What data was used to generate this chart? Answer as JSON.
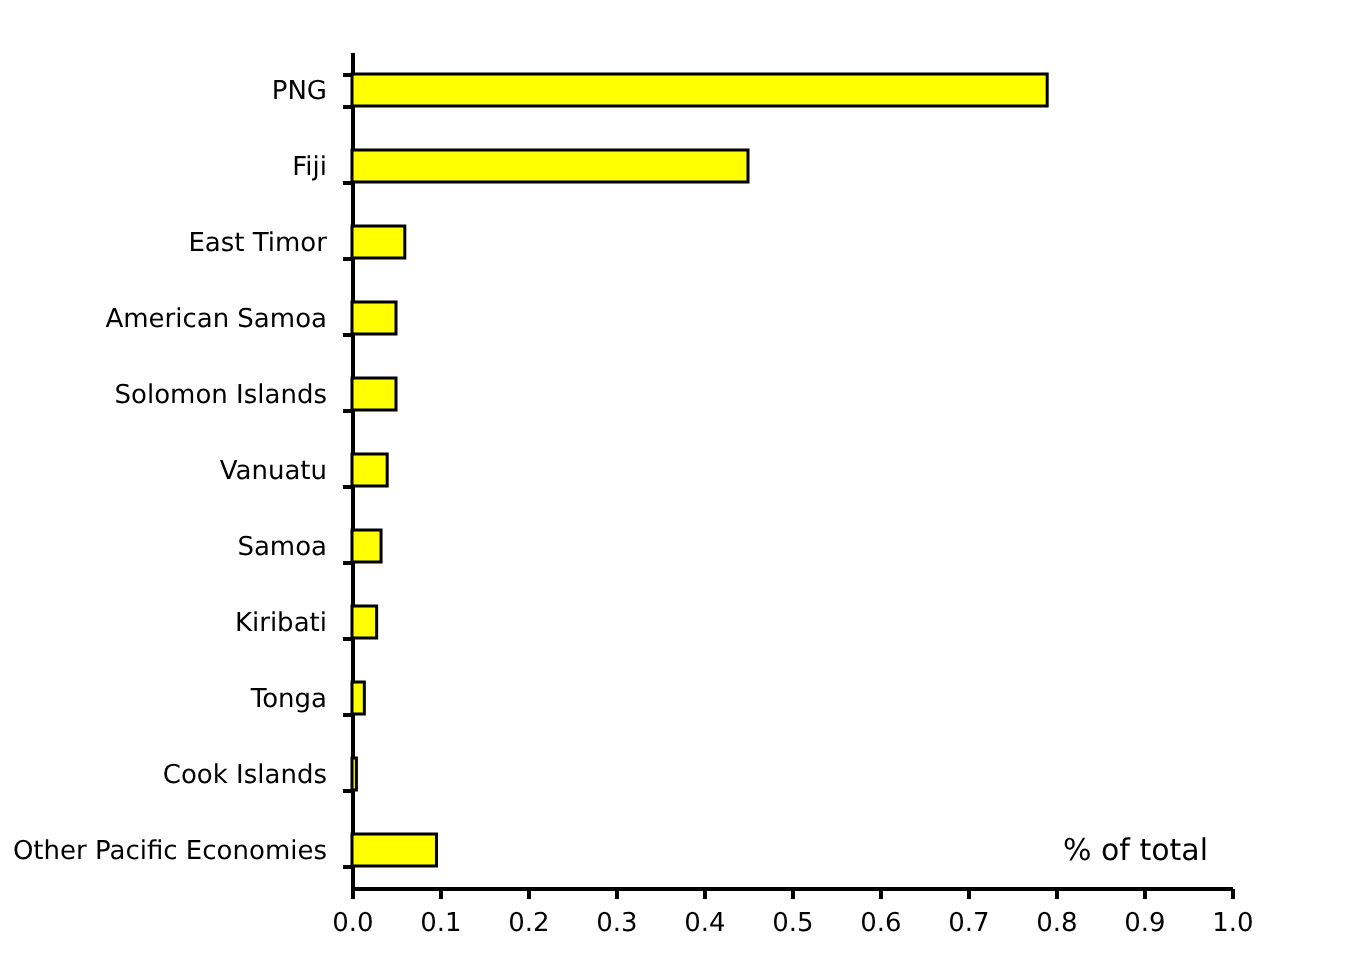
{
  "chart_data": {
    "type": "bar",
    "orientation": "horizontal",
    "xlabel": "% of total",
    "categories": [
      "PNG",
      "Fiji",
      "East Timor",
      "American Samoa",
      "Solomon Islands",
      "Vanuatu",
      "Samoa",
      "Kiribati",
      "Tonga",
      "Cook Islands",
      "Other Pacific Economies"
    ],
    "values": [
      0.79,
      0.45,
      0.06,
      0.05,
      0.05,
      0.04,
      0.033,
      0.028,
      0.014,
      0.005,
      0.096
    ],
    "color": "#ffff00",
    "xlim": [
      0.0,
      1.0
    ],
    "xticks": [
      {
        "value": 0,
        "label": "0.0"
      },
      0.1,
      0.2,
      0.3,
      0.4,
      0.5,
      0.6,
      0.7,
      0.8,
      0.9,
      {
        "value": 1,
        "label": "1.0"
      }
    ],
    "grid": false
  }
}
